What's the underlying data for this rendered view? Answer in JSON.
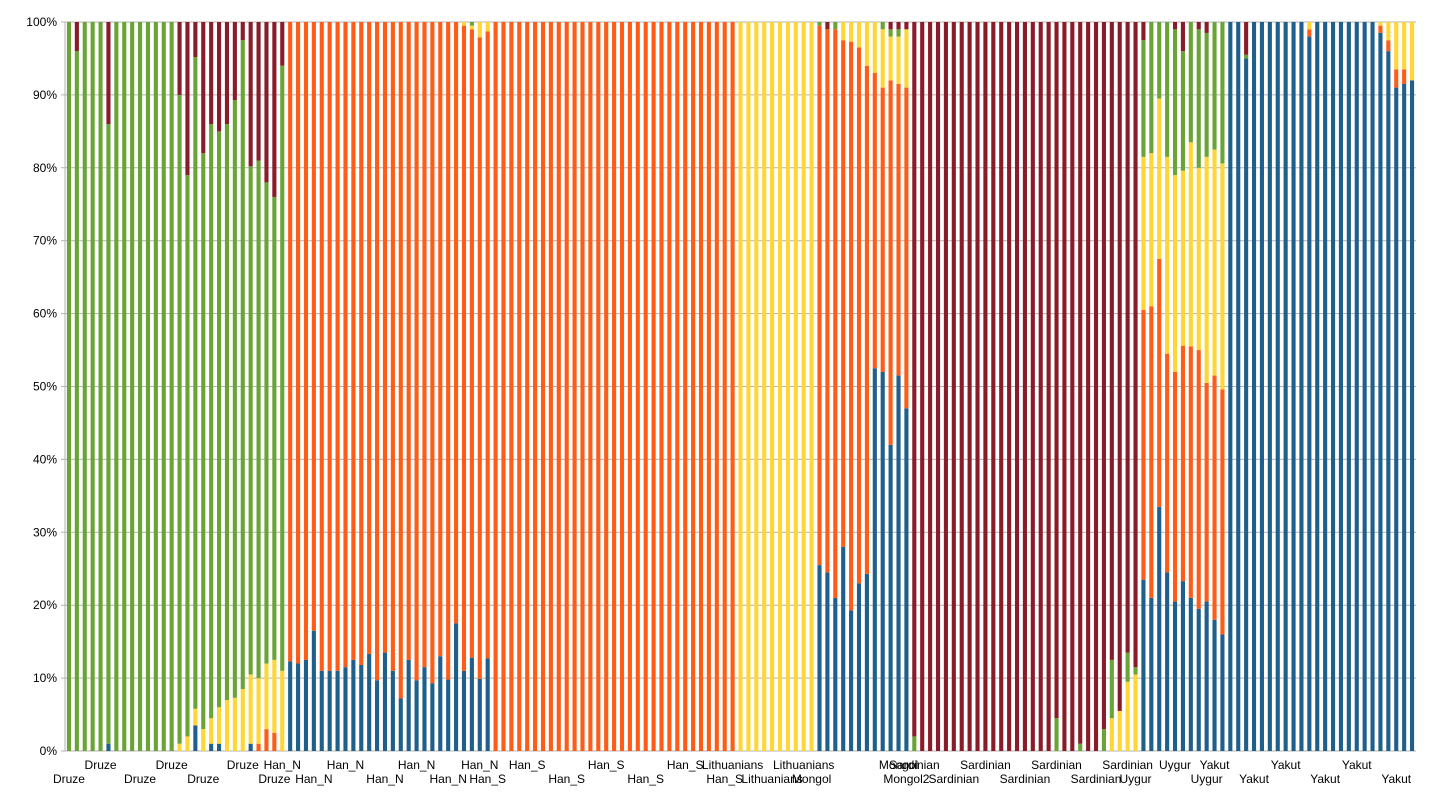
{
  "chart_data": {
    "type": "bar",
    "stacked": true,
    "percent_stacked": true,
    "grid": "horizontal",
    "legend": "none",
    "ylim": [
      0,
      100
    ],
    "yticks": [
      "0%",
      "10%",
      "20%",
      "30%",
      "40%",
      "50%",
      "60%",
      "70%",
      "80%",
      "90%",
      "100%"
    ],
    "series_colors": [
      "#1f5f8b",
      "#ff5c17",
      "#ffd635",
      "#6aa437",
      "#8a1c2a"
    ],
    "groups": [
      {
        "name": "Druze",
        "count": 27,
        "labels": 7
      },
      {
        "name": "Han_N",
        "count": 26,
        "labels": 7
      },
      {
        "name": "Han_S",
        "count": 31,
        "labels": 7
      },
      {
        "name": "Lithuanians",
        "count": 10,
        "labels": 3
      },
      {
        "name": "Mongol",
        "count": 12,
        "labels": 2
      },
      {
        "name": "Mongol2",
        "count": 1,
        "labels": 1
      },
      {
        "name": "Sardinian",
        "count": 28,
        "labels": 7
      },
      {
        "name": "Uygur",
        "count": 10,
        "labels": 3
      },
      {
        "name": "Yakut",
        "count": 24,
        "labels": 6
      }
    ],
    "values": [
      [
        0,
        0,
        0,
        100,
        0
      ],
      [
        0,
        0,
        0,
        96,
        4
      ],
      [
        0,
        0,
        0,
        100,
        0
      ],
      [
        0,
        0,
        0,
        100,
        0
      ],
      [
        0,
        0,
        0,
        100,
        0
      ],
      [
        1,
        0,
        0,
        85,
        14
      ],
      [
        0,
        0,
        0,
        100,
        0
      ],
      [
        0,
        0,
        0,
        100,
        0
      ],
      [
        0,
        0,
        0,
        100,
        0
      ],
      [
        0,
        0,
        0,
        100,
        0
      ],
      [
        0,
        0,
        0,
        100,
        0
      ],
      [
        0,
        0,
        0,
        100,
        0
      ],
      [
        0,
        0,
        0,
        100,
        0
      ],
      [
        0,
        0,
        0,
        100,
        0
      ],
      [
        0,
        0,
        1,
        89,
        10
      ],
      [
        0,
        0,
        2,
        77,
        21
      ],
      [
        3.5,
        0,
        2.3,
        89.4,
        4.8
      ],
      [
        0,
        0,
        3,
        79,
        18
      ],
      [
        1,
        0,
        3.5,
        81.5,
        14
      ],
      [
        1,
        0,
        5,
        79,
        15
      ],
      [
        0,
        0,
        7,
        79,
        14
      ],
      [
        0,
        0,
        7.3,
        82,
        10.7
      ],
      [
        0,
        0,
        8.5,
        89,
        2.5
      ],
      [
        1,
        0,
        9.5,
        69.7,
        19.8
      ],
      [
        0,
        1,
        9,
        71,
        19
      ],
      [
        0,
        3,
        9,
        66,
        22
      ],
      [
        0,
        2.5,
        10,
        63.5,
        24
      ],
      [
        0,
        0,
        11,
        83,
        6
      ],
      [
        12.3,
        87.7,
        0,
        0,
        0
      ],
      [
        12,
        88,
        0,
        0,
        0
      ],
      [
        12.5,
        87.5,
        0,
        0,
        0
      ],
      [
        16.5,
        83.5,
        0,
        0,
        0
      ],
      [
        11,
        89,
        0,
        0,
        0
      ],
      [
        11,
        89,
        0,
        0,
        0
      ],
      [
        11,
        89,
        0,
        0,
        0
      ],
      [
        11.5,
        88.5,
        0,
        0,
        0
      ],
      [
        12.5,
        87.5,
        0,
        0,
        0
      ],
      [
        11.8,
        88.2,
        0,
        0,
        0
      ],
      [
        13.3,
        86.7,
        0,
        0,
        0
      ],
      [
        9.7,
        90.3,
        0,
        0,
        0
      ],
      [
        13.5,
        86.5,
        0,
        0,
        0
      ],
      [
        11,
        89,
        0,
        0,
        0
      ],
      [
        7.2,
        92.8,
        0,
        0,
        0
      ],
      [
        12.5,
        87.5,
        0,
        0,
        0
      ],
      [
        9.7,
        90.3,
        0,
        0,
        0
      ],
      [
        11.5,
        88.5,
        0,
        0,
        0
      ],
      [
        9.3,
        90.7,
        0,
        0,
        0
      ],
      [
        13,
        87,
        0,
        0,
        0
      ],
      [
        9.8,
        90.2,
        0,
        0,
        0
      ],
      [
        17.5,
        82.5,
        0,
        0,
        0
      ],
      [
        11,
        88.5,
        0.5,
        0,
        0
      ],
      [
        12.8,
        86.2,
        0.5,
        0.5,
        0
      ],
      [
        9.9,
        88,
        2.1,
        0,
        0
      ],
      [
        12.7,
        86,
        1.3,
        0,
        0
      ],
      [
        0,
        100,
        0,
        0,
        0
      ],
      [
        0,
        100,
        0,
        0,
        0
      ],
      [
        0,
        100,
        0,
        0,
        0
      ],
      [
        0,
        100,
        0,
        0,
        0
      ],
      [
        0,
        100,
        0,
        0,
        0
      ],
      [
        0,
        100,
        0,
        0,
        0
      ],
      [
        0,
        100,
        0,
        0,
        0
      ],
      [
        0,
        100,
        0,
        0,
        0
      ],
      [
        0,
        100,
        0,
        0,
        0
      ],
      [
        0,
        100,
        0,
        0,
        0
      ],
      [
        0,
        100,
        0,
        0,
        0
      ],
      [
        0,
        100,
        0,
        0,
        0
      ],
      [
        0,
        100,
        0,
        0,
        0
      ],
      [
        0,
        100,
        0,
        0,
        0
      ],
      [
        0,
        100,
        0,
        0,
        0
      ],
      [
        0,
        100,
        0,
        0,
        0
      ],
      [
        0,
        100,
        0,
        0,
        0
      ],
      [
        0,
        100,
        0,
        0,
        0
      ],
      [
        0,
        100,
        0,
        0,
        0
      ],
      [
        0,
        100,
        0,
        0,
        0
      ],
      [
        0,
        100,
        0,
        0,
        0
      ],
      [
        0,
        100,
        0,
        0,
        0
      ],
      [
        0,
        100,
        0,
        0,
        0
      ],
      [
        0,
        100,
        0,
        0,
        0
      ],
      [
        0,
        100,
        0,
        0,
        0
      ],
      [
        0,
        100,
        0,
        0,
        0
      ],
      [
        0,
        100,
        0,
        0,
        0
      ],
      [
        0,
        100,
        0,
        0,
        0
      ],
      [
        0,
        100,
        0,
        0,
        0
      ],
      [
        0,
        100,
        0,
        0,
        0
      ],
      [
        0,
        100,
        0,
        0,
        0
      ],
      [
        0,
        0,
        100,
        0,
        0
      ],
      [
        0,
        0,
        100,
        0,
        0
      ],
      [
        0,
        0,
        100,
        0,
        0
      ],
      [
        0,
        0,
        100,
        0,
        0
      ],
      [
        0,
        0,
        100,
        0,
        0
      ],
      [
        0,
        0,
        100,
        0,
        0
      ],
      [
        0,
        0,
        100,
        0,
        0
      ],
      [
        0,
        0,
        100,
        0,
        0
      ],
      [
        0,
        0,
        100,
        0,
        0
      ],
      [
        0,
        0,
        100,
        0,
        0
      ],
      [
        25.5,
        74,
        0,
        0.5,
        0
      ],
      [
        24.5,
        74.5,
        0,
        0,
        1
      ],
      [
        21,
        78,
        0,
        1,
        0
      ],
      [
        28,
        69.5,
        2.5,
        0,
        0
      ],
      [
        19.3,
        78,
        2.7,
        0,
        0
      ],
      [
        23,
        73.5,
        3.5,
        0,
        0
      ],
      [
        24.3,
        69.7,
        6,
        0,
        0
      ],
      [
        52.5,
        40.5,
        7,
        0,
        0
      ],
      [
        52,
        39,
        8,
        1,
        0
      ],
      [
        42,
        50,
        6,
        1,
        1
      ],
      [
        51.5,
        40,
        6.5,
        1,
        1
      ],
      [
        47,
        44,
        8,
        0,
        1
      ],
      [
        0,
        0,
        0,
        2,
        98
      ],
      [
        0,
        0,
        0,
        0,
        100
      ],
      [
        0,
        0,
        0,
        0,
        100
      ],
      [
        0,
        0,
        0,
        0,
        100
      ],
      [
        0,
        0,
        0,
        0,
        100
      ],
      [
        0,
        0,
        0,
        0,
        100
      ],
      [
        0,
        0,
        0,
        0,
        100
      ],
      [
        0,
        0,
        0,
        0,
        100
      ],
      [
        0,
        0,
        0,
        0,
        100
      ],
      [
        0,
        0,
        0,
        0,
        100
      ],
      [
        0,
        0,
        0,
        0,
        100
      ],
      [
        0,
        0,
        0,
        0,
        100
      ],
      [
        0,
        0,
        0,
        0,
        100
      ],
      [
        0,
        0,
        0,
        0,
        100
      ],
      [
        0,
        0,
        0,
        0,
        100
      ],
      [
        0,
        0,
        0,
        0,
        100
      ],
      [
        0,
        0,
        0,
        0,
        100
      ],
      [
        0,
        0,
        0,
        0,
        100
      ],
      [
        0,
        0,
        0,
        4.5,
        95.5
      ],
      [
        0,
        0,
        0,
        0,
        100
      ],
      [
        0,
        0,
        0,
        0,
        100
      ],
      [
        0,
        0,
        0,
        1,
        99
      ],
      [
        0,
        0,
        0,
        0,
        100
      ],
      [
        0,
        0,
        0,
        0,
        100
      ],
      [
        0,
        0,
        0,
        3,
        97
      ],
      [
        0,
        0,
        4.5,
        8,
        87.5
      ],
      [
        0,
        0,
        5.5,
        0,
        94.5
      ],
      [
        0,
        0,
        9.5,
        4,
        86.5
      ],
      [
        0,
        0,
        10.5,
        1,
        88.5
      ],
      [
        23.5,
        37,
        21,
        16,
        2.5
      ],
      [
        21,
        40,
        21,
        18,
        0
      ],
      [
        33.5,
        34,
        22,
        10.5,
        0
      ],
      [
        24.5,
        30,
        27,
        18.5,
        0
      ],
      [
        20.5,
        31.5,
        27,
        20,
        1
      ],
      [
        23.3,
        32.3,
        24,
        16.4,
        4
      ],
      [
        21,
        34.5,
        28,
        16.5,
        0
      ],
      [
        19.5,
        35.5,
        25,
        19,
        1
      ],
      [
        20.5,
        30,
        31,
        17,
        1.5
      ],
      [
        18,
        33.5,
        31,
        17.5,
        0
      ],
      [
        16,
        33.6,
        31,
        19.4,
        0
      ],
      [
        100,
        0,
        0,
        0,
        0
      ],
      [
        100,
        0,
        0,
        0,
        0
      ],
      [
        95,
        0,
        0,
        0.5,
        4.5
      ],
      [
        100,
        0,
        0,
        0,
        0
      ],
      [
        100,
        0,
        0,
        0,
        0
      ],
      [
        100,
        0,
        0,
        0,
        0
      ],
      [
        100,
        0,
        0,
        0,
        0
      ],
      [
        100,
        0,
        0,
        0,
        0
      ],
      [
        100,
        0,
        0,
        0,
        0
      ],
      [
        100,
        0,
        0,
        0,
        0
      ],
      [
        98,
        1,
        1,
        0,
        0
      ],
      [
        100,
        0,
        0,
        0,
        0
      ],
      [
        100,
        0,
        0,
        0,
        0
      ],
      [
        100,
        0,
        0,
        0,
        0
      ],
      [
        100,
        0,
        0,
        0,
        0
      ],
      [
        100,
        0,
        0,
        0,
        0
      ],
      [
        100,
        0,
        0,
        0,
        0
      ],
      [
        100,
        0,
        0,
        0,
        0
      ],
      [
        100,
        0,
        0,
        0,
        0
      ],
      [
        98.5,
        1,
        0.5,
        0,
        0
      ],
      [
        96,
        1.5,
        2.5,
        0,
        0
      ],
      [
        91,
        2.5,
        6.5,
        0,
        0
      ],
      [
        91.5,
        2,
        6.5,
        0,
        0
      ],
      [
        92,
        0,
        8,
        0,
        0
      ]
    ]
  }
}
